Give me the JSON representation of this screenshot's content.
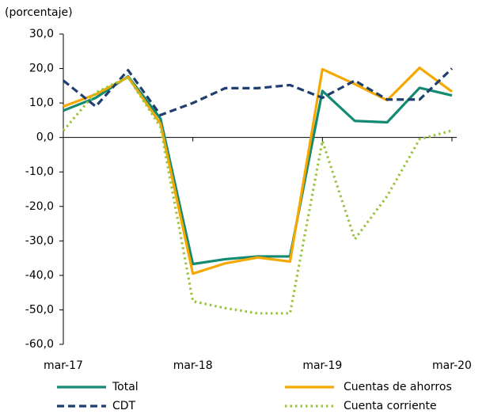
{
  "chart_data": {
    "type": "line",
    "y_label": "(porcentaje)",
    "categories": [
      "mar-17",
      null,
      null,
      null,
      "mar-18",
      null,
      null,
      null,
      "mar-19",
      null,
      null,
      null,
      "mar-20"
    ],
    "ylim": [
      -60,
      30
    ],
    "yticks": [
      {
        "value": -60,
        "label": "-60,0"
      },
      {
        "value": -50,
        "label": "-50,0"
      },
      {
        "value": -40,
        "label": "-40,0"
      },
      {
        "value": -30,
        "label": "-30,0"
      },
      {
        "value": -20,
        "label": "-20,0"
      },
      {
        "value": -10,
        "label": "-10,0"
      },
      {
        "value": 0,
        "label": "0,0"
      },
      {
        "value": 10,
        "label": "10,0"
      },
      {
        "value": 20,
        "label": "20,0"
      },
      {
        "value": 30,
        "label": "30,0"
      }
    ],
    "legend": "bottom",
    "series": [
      {
        "name": "Total",
        "color": "#138a72",
        "style": "solid",
        "values": [
          7.8,
          11.5,
          17.7,
          5.5,
          -36.7,
          -35.3,
          -34.5,
          -34.5,
          13.5,
          4.8,
          4.4,
          14.4,
          12.2
        ]
      },
      {
        "name": "Cuentas de ahorros",
        "color": "#f5a800",
        "style": "solid",
        "values": [
          9.0,
          12.5,
          17.5,
          4.0,
          -39.5,
          -36.5,
          -34.8,
          -36.0,
          19.8,
          15.5,
          10.8,
          20.2,
          13.3
        ]
      },
      {
        "name": "CDT",
        "color": "#1f3f6e",
        "style": "dashed",
        "values": [
          16.5,
          9.0,
          19.5,
          6.5,
          10.0,
          14.3,
          14.3,
          15.2,
          11.5,
          16.5,
          11.0,
          11.0,
          20.0
        ]
      },
      {
        "name": "Cuenta corriente",
        "color": "#9ac43d",
        "style": "dotted",
        "values": [
          2.0,
          13.0,
          17.5,
          3.0,
          -47.5,
          -49.5,
          -51.0,
          -51.0,
          -1.0,
          -29.5,
          -17.0,
          -0.5,
          2.0
        ]
      }
    ]
  }
}
